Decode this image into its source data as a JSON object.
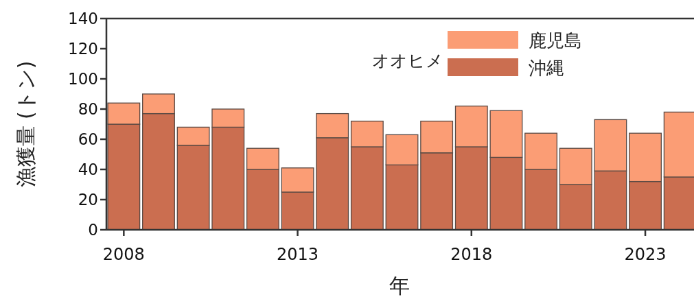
{
  "chart_data": {
    "type": "bar",
    "stacked": true,
    "xlabel": "年",
    "ylabel": "漁獲量 (トン)",
    "legend_title": "オオヒメ",
    "legend": "top right",
    "categories": [
      "2008",
      null,
      null,
      null,
      null,
      "2013",
      null,
      null,
      null,
      null,
      "2018",
      null,
      null,
      null,
      null,
      "2023",
      null
    ],
    "ylim": [
      0,
      140
    ],
    "yticks": [
      0,
      20,
      40,
      60,
      80,
      100,
      120,
      140
    ],
    "series": [
      {
        "name": "沖縄",
        "color": "#cb6e50",
        "values": [
          70,
          77,
          56,
          68,
          40,
          25,
          61,
          55,
          43,
          51,
          55,
          48,
          40,
          30,
          39,
          32,
          35
        ]
      },
      {
        "name": "鹿児島",
        "color": "#fb9d75",
        "values": [
          14,
          13,
          12,
          12,
          14,
          16,
          16,
          17,
          20,
          21,
          27,
          31,
          24,
          24,
          34,
          32,
          43
        ]
      }
    ]
  }
}
